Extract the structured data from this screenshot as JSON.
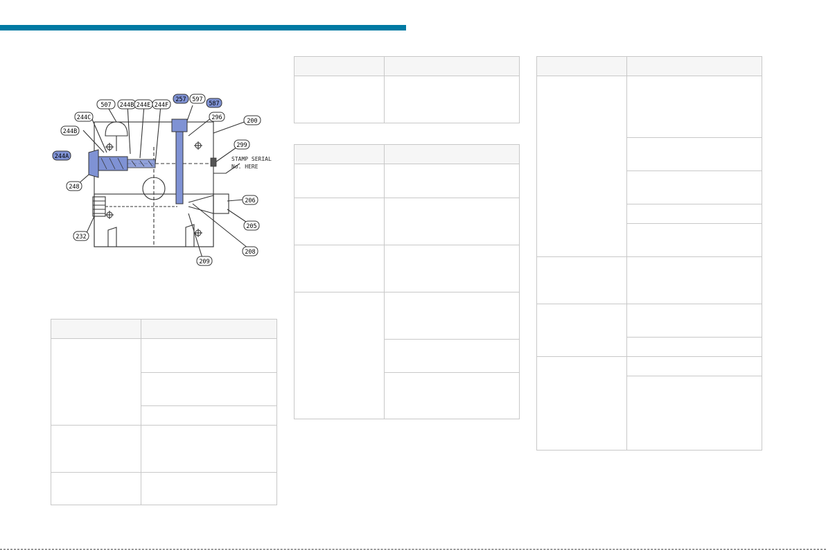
{
  "page": {
    "accent_color": "#007aa3",
    "highlight_color": "#7f92d4"
  },
  "diagram": {
    "callouts": [
      "507",
      "244B",
      "244E",
      "244F",
      "257",
      "597",
      "587",
      "296",
      "200",
      "244C",
      "244B",
      "299",
      "244A",
      "248",
      "206",
      "232",
      "205",
      "209",
      "208"
    ],
    "note": [
      "STAMP SERIAL",
      "No. HERE"
    ]
  }
}
